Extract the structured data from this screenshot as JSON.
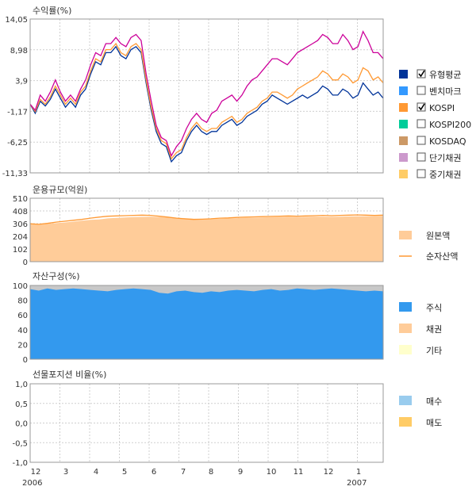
{
  "chart_data": [
    {
      "type": "line",
      "title": "수익률(%)",
      "ylim": [
        -11.33,
        14.05
      ],
      "yticks": [
        "14,05",
        "8,98",
        "3,9",
        "-1,17",
        "-6,25",
        "-11,33"
      ],
      "series": [
        {
          "name": "유형평균",
          "color": "#003399",
          "checked": true,
          "values": [
            0.0,
            -1.5,
            0.5,
            -0.3,
            0.8,
            2.5,
            1.0,
            -0.5,
            0.5,
            -0.5,
            1.5,
            2.5,
            5.0,
            7.0,
            6.5,
            8.5,
            8.5,
            9.5,
            8.0,
            7.5,
            9.0,
            9.5,
            8.5,
            3.5,
            -1.0,
            -4.5,
            -6.5,
            -7.0,
            -9.5,
            -8.5,
            -8.0,
            -6.0,
            -4.5,
            -3.5,
            -4.5,
            -5.0,
            -4.5,
            -4.5,
            -3.5,
            -3.0,
            -2.5,
            -3.5,
            -3.0,
            -2.0,
            -1.5,
            -1.0,
            0.0,
            0.5,
            1.5,
            1.0,
            0.5,
            0.0,
            0.5,
            1.0,
            1.5,
            1.0,
            1.5,
            2.0,
            3.0,
            2.5,
            1.5,
            1.5,
            2.5,
            2.0,
            1.0,
            1.5,
            3.5,
            2.5,
            1.5,
            2.0,
            1.0
          ]
        },
        {
          "name": "벤치마크",
          "color": "#3399ff",
          "checked": false
        },
        {
          "name": "KOSPI",
          "color": "#ff9933",
          "checked": true,
          "values": [
            0.0,
            -1.2,
            0.8,
            0.0,
            1.2,
            3.0,
            1.5,
            0.0,
            1.0,
            0.0,
            2.0,
            3.0,
            5.5,
            7.5,
            7.0,
            9.0,
            9.0,
            10.0,
            8.5,
            8.0,
            9.5,
            10.0,
            9.0,
            4.0,
            -0.5,
            -4.0,
            -6.0,
            -6.5,
            -9.0,
            -8.0,
            -7.5,
            -5.5,
            -4.0,
            -3.0,
            -4.0,
            -4.5,
            -4.0,
            -4.0,
            -3.0,
            -2.5,
            -2.0,
            -3.0,
            -2.5,
            -1.5,
            -1.0,
            -0.5,
            0.5,
            1.0,
            2.0,
            2.0,
            1.5,
            1.0,
            1.5,
            2.5,
            3.0,
            3.5,
            4.0,
            4.5,
            5.5,
            5.0,
            4.0,
            4.0,
            5.0,
            4.5,
            3.5,
            4.0,
            6.0,
            5.5,
            4.0,
            4.5,
            3.5
          ]
        },
        {
          "name": "KOSPI200",
          "color": "#00cc99",
          "checked": false
        },
        {
          "name": "KOSDAQ",
          "color": "#cc9966",
          "checked": false
        },
        {
          "name": "단기채권",
          "color": "#cc99cc",
          "checked": false
        },
        {
          "name": "중기채권",
          "color": "#ffcc66",
          "checked": false
        },
        {
          "name": "",
          "color": "#cc0099",
          "checked": true,
          "values": [
            0.0,
            -1.0,
            1.5,
            0.5,
            2.0,
            4.0,
            2.0,
            0.5,
            1.5,
            0.5,
            2.5,
            4.0,
            6.5,
            8.5,
            8.0,
            10.0,
            10.0,
            11.0,
            10.0,
            9.5,
            11.0,
            11.5,
            10.5,
            5.0,
            0.5,
            -3.5,
            -5.5,
            -6.0,
            -8.5,
            -7.0,
            -6.0,
            -4.0,
            -2.5,
            -1.5,
            -2.5,
            -3.0,
            -1.5,
            -1.0,
            0.5,
            1.0,
            1.5,
            0.5,
            1.5,
            3.0,
            4.0,
            4.5,
            5.5,
            6.5,
            7.5,
            7.5,
            7.0,
            6.5,
            7.5,
            8.5,
            9.0,
            9.5,
            10.0,
            10.5,
            11.5,
            11.0,
            10.0,
            10.0,
            11.5,
            10.5,
            9.0,
            9.5,
            12.0,
            10.5,
            8.5,
            8.5,
            7.5
          ]
        }
      ]
    },
    {
      "type": "area",
      "title": "운용규모(억원)",
      "ylim": [
        0,
        510
      ],
      "yticks": [
        "510",
        "408",
        "306",
        "204",
        "102",
        "0"
      ],
      "series": [
        {
          "name": "원본액",
          "color": "#ffcc99",
          "values": [
            300,
            298,
            305,
            310,
            315,
            322,
            330,
            336,
            340,
            348,
            352,
            356,
            358,
            360,
            362,
            360,
            358,
            354,
            350,
            345,
            344,
            343,
            345,
            348,
            350,
            352,
            354,
            356,
            358,
            360,
            362,
            360,
            361,
            363,
            362,
            361,
            362,
            364,
            365,
            366,
            367,
            368
          ]
        },
        {
          "name": "순자산액",
          "color": "#ff9933",
          "values": [
            305,
            300,
            308,
            318,
            325,
            333,
            340,
            350,
            358,
            365,
            368,
            370,
            372,
            374,
            372,
            366,
            358,
            350,
            344,
            340,
            342,
            345,
            350,
            352,
            356,
            358,
            360,
            362,
            364,
            366,
            368,
            366,
            368,
            370,
            372,
            370,
            372,
            374,
            376,
            374,
            372,
            374
          ]
        }
      ]
    },
    {
      "type": "area",
      "title": "자산구성(%)",
      "ylim": [
        0,
        100
      ],
      "yticks": [
        "100",
        "80",
        "60",
        "40",
        "20",
        "0"
      ],
      "series": [
        {
          "name": "주식",
          "color": "#3399ee",
          "values": [
            95,
            93,
            96,
            94,
            95,
            96,
            95,
            94,
            93,
            92,
            94,
            95,
            96,
            95,
            94,
            90,
            89,
            92,
            93,
            91,
            90,
            92,
            91,
            93,
            94,
            93,
            92,
            94,
            95,
            93,
            94,
            96,
            95,
            94,
            95,
            96,
            95,
            94,
            93,
            92,
            93,
            92
          ]
        },
        {
          "name": "채권",
          "color": "#ffcc99"
        },
        {
          "name": "기타",
          "color": "#ffffcc"
        }
      ]
    },
    {
      "type": "line",
      "title": "선물포지션 비율(%)",
      "ylim": [
        -1.0,
        1.0
      ],
      "yticks": [
        "1,0",
        "0,5",
        "0,0",
        "-0,5",
        "-1,0"
      ],
      "series": [
        {
          "name": "매수",
          "color": "#99ccee"
        },
        {
          "name": "매도",
          "color": "#ffcc66"
        }
      ]
    }
  ],
  "x_axis": {
    "months": [
      "12",
      "3",
      "4",
      "5",
      "6",
      "7",
      "8",
      "9",
      "10",
      "11",
      "12",
      "1"
    ],
    "years": [
      "2006",
      "2007"
    ]
  }
}
